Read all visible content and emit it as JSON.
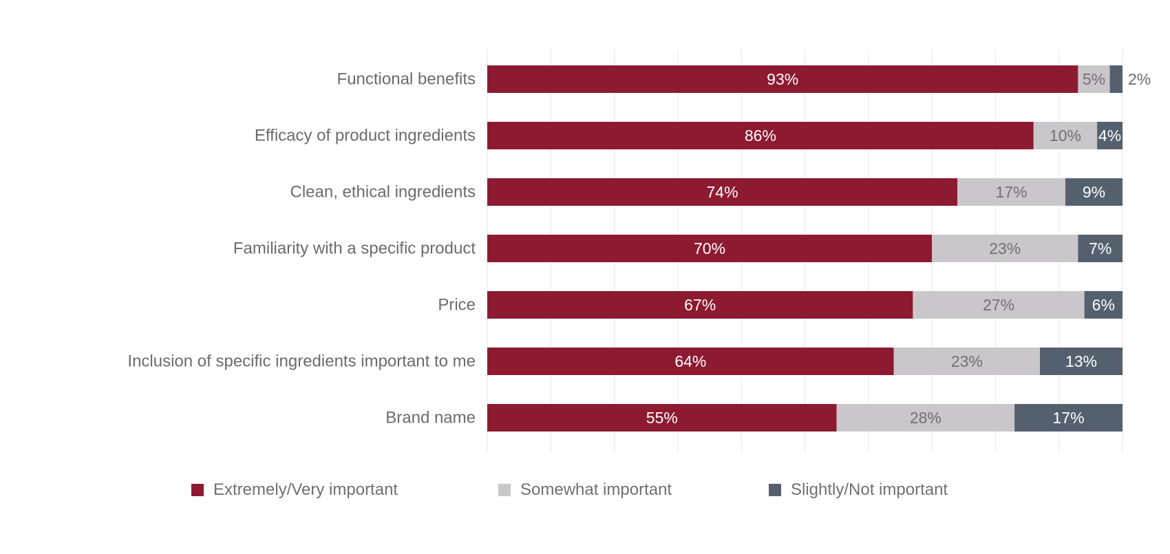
{
  "chart_data": {
    "type": "bar",
    "orientation": "horizontal",
    "stacked": true,
    "categories": [
      "Functional benefits",
      "Efficacy of product ingredients",
      "Clean, ethical ingredients",
      "Familiarity with a specific product",
      "Price",
      "Inclusion of specific ingredients important to me",
      "Brand name"
    ],
    "series": [
      {
        "name": "Extremely/Very important",
        "color": "#8d1a31",
        "label_color": "#ffffff",
        "values": [
          93,
          86,
          74,
          70,
          67,
          64,
          55
        ],
        "labels": [
          "93%",
          "86%",
          "74%",
          "70%",
          "67%",
          "64%",
          "55%"
        ]
      },
      {
        "name": "Somewhat important",
        "color": "#c9c7ca",
        "label_color": "#707070",
        "values": [
          5,
          10,
          17,
          23,
          27,
          23,
          28
        ],
        "labels": [
          "5%",
          "10%",
          "17%",
          "23%",
          "27%",
          "23%",
          "28%"
        ]
      },
      {
        "name": "Slightly/Not important",
        "color": "#55606f",
        "label_color": "#ffffff",
        "values": [
          2,
          4,
          9,
          7,
          6,
          13,
          17
        ],
        "labels": [
          "2%",
          "4%",
          "9%",
          "7%",
          "6%",
          "13%",
          "17%"
        ]
      }
    ],
    "xlim": [
      0,
      100
    ],
    "grid": true,
    "legend_position": "bottom",
    "title": "",
    "xlabel": "",
    "ylabel": ""
  },
  "style": {
    "category_label_color": "#6b6b6b",
    "outside_label_color": "#6b6b6b",
    "grid_color": "#e6e6e6"
  }
}
